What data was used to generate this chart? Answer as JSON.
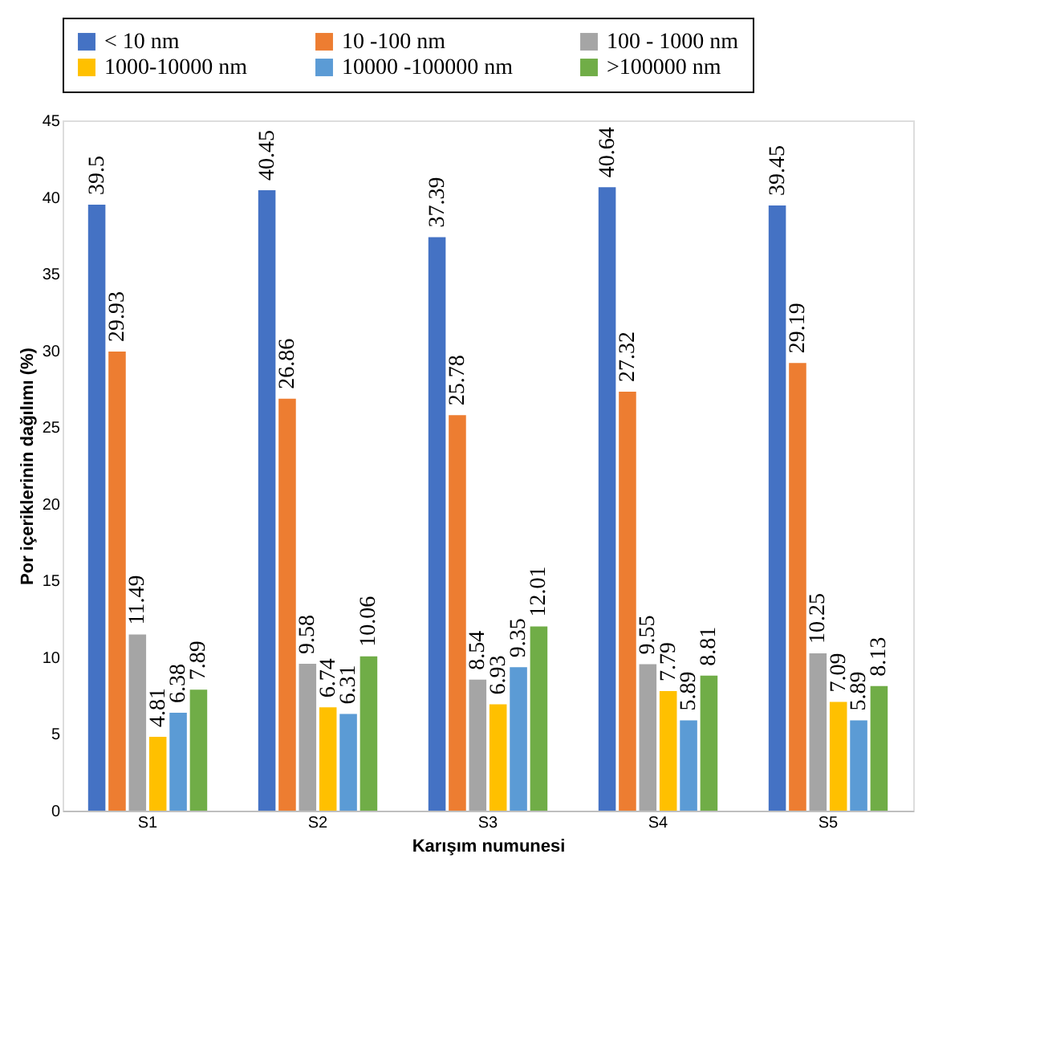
{
  "chart_data": {
    "type": "bar",
    "xlabel": "Karışım numunesi",
    "ylabel": "Por içeriklerinin dağılımı (%)",
    "categories": [
      "S1",
      "S2",
      "S3",
      "S4",
      "S5"
    ],
    "series": [
      {
        "name": "< 10 nm",
        "color": "#4472c4",
        "values": [
          39.5,
          40.45,
          37.39,
          40.64,
          39.45
        ]
      },
      {
        "name": "10 -100 nm",
        "color": "#ed7d31",
        "values": [
          29.93,
          26.86,
          25.78,
          27.32,
          29.19
        ]
      },
      {
        "name": "100 - 1000 nm",
        "color": "#a5a5a5",
        "values": [
          11.49,
          9.58,
          8.54,
          9.55,
          10.25
        ]
      },
      {
        "name": "1000-10000 nm",
        "color": "#ffc000",
        "values": [
          4.81,
          6.74,
          6.93,
          7.79,
          7.09
        ]
      },
      {
        "name": "10000 -100000 nm",
        "color": "#5b9bd5",
        "values": [
          6.38,
          6.31,
          9.35,
          5.89,
          5.89
        ]
      },
      {
        "name": ">100000 nm",
        "color": "#70ad47",
        "values": [
          7.89,
          10.06,
          12.01,
          8.81,
          8.13
        ]
      }
    ],
    "ylim": [
      0,
      45
    ],
    "yticks": [
      0,
      5,
      10,
      15,
      20,
      25,
      30,
      35,
      40,
      45
    ],
    "grid": false,
    "legend": "top",
    "data_labels": true
  }
}
